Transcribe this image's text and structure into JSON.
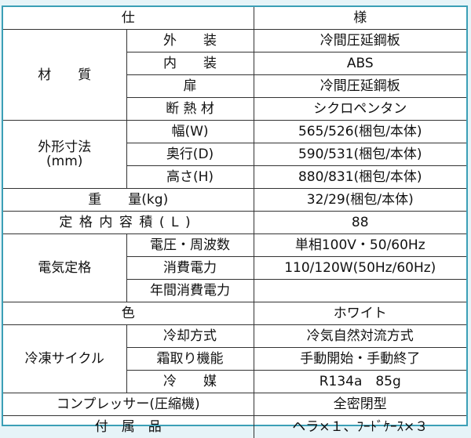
{
  "header": {
    "left": "仕",
    "right": "様"
  },
  "material": {
    "label": "材　　質",
    "rows": [
      {
        "label": "外　　装",
        "value": "冷間圧延鋼板"
      },
      {
        "label": "内　　装",
        "value": "ABS"
      },
      {
        "label": "扉",
        "value": "冷間圧延鋼板"
      },
      {
        "label": "断 熱 材",
        "value": "シクロペンタン"
      }
    ]
  },
  "dimensions": {
    "label": "外形寸法",
    "unit": "(mm)",
    "rows": [
      {
        "label": "幅(W)",
        "value": "565/526(梱包/本体)"
      },
      {
        "label": "奥行(D)",
        "value": "590/531(梱包/本体)"
      },
      {
        "label": "高さ(H)",
        "value": "880/831(梱包/本体)"
      }
    ]
  },
  "weight": {
    "label": "重　　量(kg)",
    "value": "32/29(梱包/本体)"
  },
  "capacity": {
    "label": "定格内容積(L)",
    "value": "88"
  },
  "electrical": {
    "label": "電気定格",
    "rows": [
      {
        "label": "電圧・周波数",
        "value": "単相100V・50/60Hz"
      },
      {
        "label": "消費電力",
        "value": "110/120W(50Hz/60Hz)"
      },
      {
        "label": "年間消費電力",
        "value": ""
      }
    ]
  },
  "color": {
    "label": "色",
    "value": "ホワイト"
  },
  "refrigeration": {
    "label": "冷凍サイクル",
    "rows": [
      {
        "label": "冷却方式",
        "value": "冷気自然対流方式"
      },
      {
        "label": "霜取り機能",
        "value": "手動開始・手動終了"
      },
      {
        "label": "冷　　媒",
        "value": "R134a　85g"
      }
    ]
  },
  "compressor": {
    "label": "コンプレッサー(圧縮機)",
    "value": "全密閉型"
  },
  "accessories": {
    "label": "付　属　品",
    "value": "ヘラ×１、ﾌｰﾄﾞｹｰｽ×３"
  }
}
